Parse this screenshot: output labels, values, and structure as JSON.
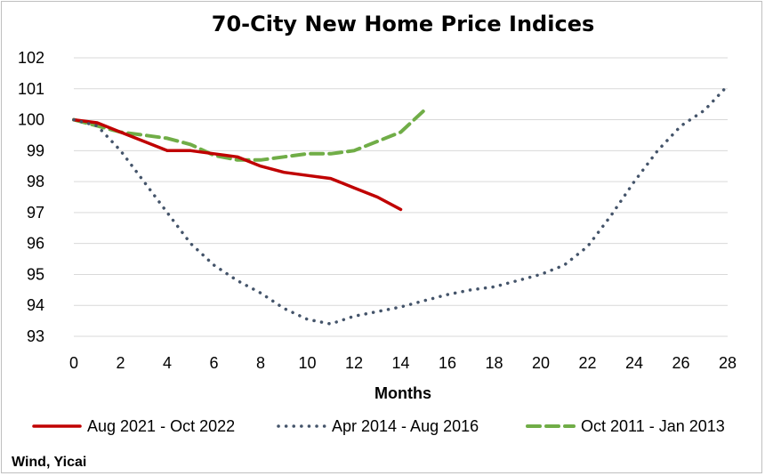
{
  "chart_data": {
    "type": "line",
    "title": "70-City New Home Price Indices",
    "xlabel": "Months",
    "ylabel": "",
    "xlim": [
      0,
      28
    ],
    "ylim": [
      93,
      102
    ],
    "x_ticks": [
      0,
      2,
      4,
      6,
      8,
      10,
      12,
      14,
      16,
      18,
      20,
      22,
      24,
      26,
      28
    ],
    "y_ticks": [
      93,
      94,
      95,
      96,
      97,
      98,
      99,
      100,
      101,
      102
    ],
    "grid": "horizontal",
    "legend": "bottom",
    "series": [
      {
        "name": "Aug 2021 - Oct 2022",
        "color": "#c00000",
        "style": "solid",
        "x": [
          0,
          1,
          2,
          3,
          4,
          5,
          6,
          7,
          8,
          9,
          10,
          11,
          12,
          13,
          14
        ],
        "y": [
          100.0,
          99.9,
          99.6,
          99.3,
          99.0,
          99.0,
          98.9,
          98.8,
          98.5,
          98.3,
          98.2,
          98.1,
          97.8,
          97.5,
          97.1
        ]
      },
      {
        "name": "Apr 2014 - Aug 2016",
        "color": "#44546a",
        "style": "dotted",
        "x": [
          0,
          1,
          2,
          3,
          4,
          5,
          6,
          7,
          8,
          9,
          10,
          11,
          12,
          13,
          14,
          15,
          16,
          17,
          18,
          19,
          20,
          21,
          22,
          23,
          24,
          25,
          26,
          27,
          28
        ],
        "y": [
          100.0,
          99.8,
          99.0,
          98.0,
          97.0,
          96.0,
          95.3,
          94.8,
          94.4,
          93.9,
          93.55,
          93.4,
          93.65,
          93.8,
          93.95,
          94.15,
          94.35,
          94.5,
          94.6,
          94.8,
          95.0,
          95.3,
          95.9,
          96.9,
          98.0,
          99.0,
          99.8,
          100.3,
          101.1
        ]
      },
      {
        "name": "Oct 2011 - Jan 2013",
        "color": "#70ad47",
        "style": "dashed",
        "x": [
          0,
          1,
          2,
          3,
          4,
          5,
          6,
          7,
          8,
          9,
          10,
          11,
          12,
          13,
          14,
          15
        ],
        "y": [
          100.0,
          99.8,
          99.6,
          99.5,
          99.4,
          99.2,
          98.85,
          98.7,
          98.7,
          98.8,
          98.9,
          98.9,
          99.0,
          99.3,
          99.6,
          100.3
        ]
      }
    ],
    "source": "Wind, Yicai"
  }
}
